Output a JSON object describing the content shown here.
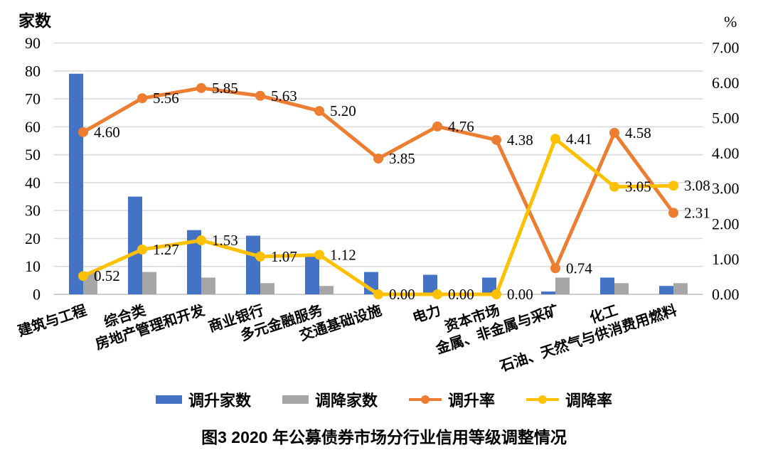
{
  "caption": "图3  2020 年公募债券市场分行业信用等级调整情况",
  "colors": {
    "upgrade_bar": "#4472C4",
    "downgrade_bar": "#A6A6A6",
    "upgrade_line": "#ED7D31",
    "downgrade_line": "#FFC000",
    "gridline": "#D9D9D9",
    "axis_line": "#BFBFBF"
  },
  "chart_data": {
    "type": "bar",
    "subtype": "dual-axis bar+line combo",
    "title": "图3  2020 年公募债券市场分行业信用等级调整情况",
    "grid": true,
    "legend_position": "bottom",
    "categories": [
      "建筑与工程",
      "综合类",
      "房地产管理和开发",
      "商业银行",
      "多元金融服务",
      "交通基础设施",
      "电力",
      "资本市场",
      "金属、非金属与采矿",
      "化工",
      "石油、天然气与供消费用燃料"
    ],
    "left_axis": {
      "label": "家数",
      "min": 0,
      "max": 90,
      "step": 10
    },
    "right_axis": {
      "label": "%",
      "min": 0,
      "max": 7,
      "step": 1,
      "tick_format": "0.00"
    },
    "series": [
      {
        "name": "调升家数",
        "kind": "bar",
        "axis": "left",
        "color": "#4472C4",
        "values": [
          79,
          35,
          23,
          21,
          14,
          8,
          7,
          6,
          1,
          6,
          3
        ]
      },
      {
        "name": "调降家数",
        "kind": "bar",
        "axis": "left",
        "color": "#A6A6A6",
        "values": [
          8,
          8,
          6,
          4,
          3,
          0,
          0,
          0,
          6,
          4,
          4
        ]
      },
      {
        "name": "调升率",
        "kind": "line",
        "axis": "right",
        "color": "#ED7D31",
        "values": [
          4.6,
          5.56,
          5.85,
          5.63,
          5.2,
          3.85,
          4.76,
          4.38,
          0.74,
          4.58,
          2.31
        ],
        "labels": [
          "4.60",
          "5.56",
          "5.85",
          "5.63",
          "5.20",
          "3.85",
          "4.76",
          "4.38",
          "0.74",
          "4.58",
          "2.31"
        ]
      },
      {
        "name": "调降率",
        "kind": "line",
        "axis": "right",
        "color": "#FFC000",
        "values": [
          0.52,
          1.27,
          1.53,
          1.07,
          1.12,
          0.0,
          0.0,
          0.0,
          4.41,
          3.05,
          3.08
        ],
        "labels": [
          "0.52",
          "1.27",
          "1.53",
          "1.07",
          "1.12",
          "0.00",
          "0.00",
          "0.00",
          "4.41",
          "3.05",
          "3.08"
        ]
      }
    ]
  }
}
